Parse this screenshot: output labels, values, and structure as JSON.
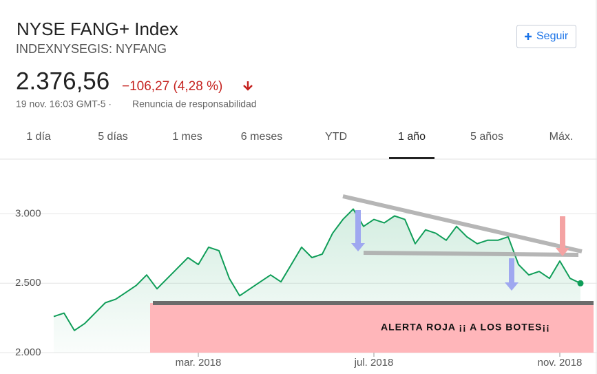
{
  "header": {
    "title": "NYSE FANG+ Index",
    "ticker": "INDEXNYSEGIS: NYFANG",
    "price": "2.376,56",
    "change": "−106,27 (4,28 %)",
    "date": "19 nov. 16:03 GMT-5 ·",
    "disclaimer": "Renuncia de responsabilidad",
    "follow_button": "Seguir"
  },
  "tabs": {
    "items": [
      "1 día",
      "5 días",
      "1 mes",
      "6 meses",
      "YTD",
      "1 año",
      "5 años",
      "Máx."
    ],
    "selected": 5
  },
  "chart_data": {
    "type": "line",
    "categories": [
      null,
      null,
      null,
      null,
      null,
      null,
      null,
      null,
      null,
      null,
      null,
      null,
      null,
      null,
      "mar. 2018",
      null,
      null,
      null,
      null,
      null,
      null,
      null,
      null,
      null,
      null,
      null,
      null,
      null,
      null,
      null,
      null,
      "jul. 2018",
      null,
      null,
      null,
      null,
      null,
      null,
      null,
      null,
      null,
      null,
      null,
      null,
      null,
      null,
      null,
      null,
      null,
      "nov. 2018",
      null,
      null
    ],
    "values": [
      2260,
      2285,
      2160,
      2210,
      2285,
      2360,
      2385,
      2435,
      2485,
      2560,
      2460,
      2535,
      2610,
      2685,
      2635,
      2760,
      2735,
      2535,
      2410,
      2460,
      2510,
      2560,
      2510,
      2635,
      2760,
      2685,
      2710,
      2860,
      2960,
      3035,
      2910,
      2960,
      2935,
      2985,
      2960,
      2785,
      2885,
      2860,
      2810,
      2910,
      2835,
      2785,
      2810,
      2810,
      2835,
      2635,
      2560,
      2585,
      2535,
      2660,
      2535,
      2500
    ],
    "color": "#0f9d58",
    "ylim": [
      2000,
      3350
    ],
    "yticks": [
      {
        "value": 2000,
        "label": "2.000"
      },
      {
        "value": 2500,
        "label": "2.500"
      },
      {
        "value": 3000,
        "label": "3.000"
      }
    ],
    "grid": true,
    "annotation": "ALERTA ROJA ¡¡ A  LOS BOTES¡¡"
  }
}
